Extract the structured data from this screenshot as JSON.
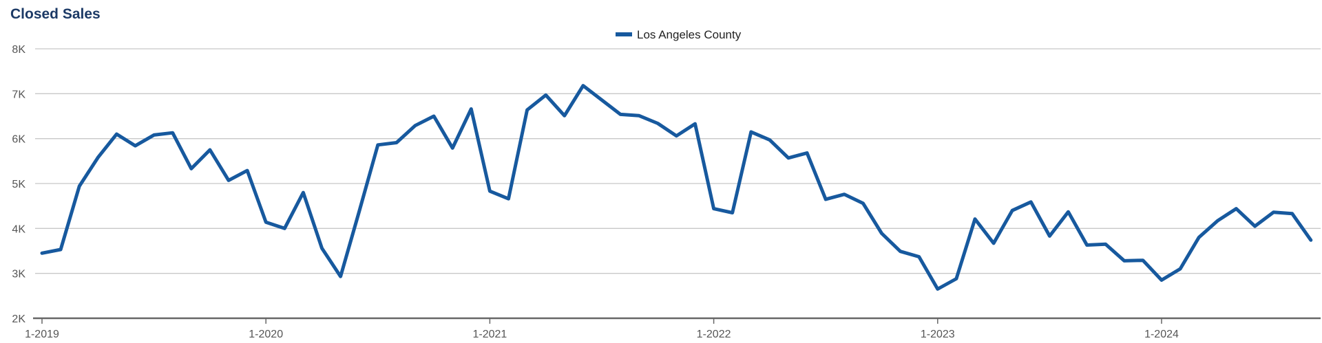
{
  "page": {
    "title": "Closed Sales"
  },
  "chart_data": {
    "type": "line",
    "title": "Closed Sales",
    "xlabel": "",
    "ylabel": "",
    "ylim": [
      2000,
      8000
    ],
    "yticks": [
      2000,
      3000,
      4000,
      5000,
      6000,
      7000,
      8000
    ],
    "ytick_labels": [
      "2K",
      "3K",
      "4K",
      "5K",
      "6K",
      "7K",
      "8K"
    ],
    "xtick_labels": [
      "1-2019",
      "1-2020",
      "1-2021",
      "1-2022",
      "1-2023",
      "1-2024"
    ],
    "x_start": "1-2019",
    "grid": true,
    "legend": "top-center",
    "colors": {
      "line": "#17599e",
      "grid": "#c8c8c8",
      "axis": "#666666",
      "tick_text": "#555555",
      "title": "#1c3a66"
    },
    "x": [
      "1-2019",
      "2-2019",
      "3-2019",
      "4-2019",
      "5-2019",
      "6-2019",
      "7-2019",
      "8-2019",
      "9-2019",
      "10-2019",
      "11-2019",
      "12-2019",
      "1-2020",
      "2-2020",
      "3-2020",
      "4-2020",
      "5-2020",
      "6-2020",
      "7-2020",
      "8-2020",
      "9-2020",
      "10-2020",
      "11-2020",
      "12-2020",
      "1-2021",
      "2-2021",
      "3-2021",
      "4-2021",
      "5-2021",
      "6-2021",
      "7-2021",
      "8-2021",
      "9-2021",
      "10-2021",
      "11-2021",
      "12-2021",
      "1-2022",
      "2-2022",
      "3-2022",
      "4-2022",
      "5-2022",
      "6-2022",
      "7-2022",
      "8-2022",
      "9-2022",
      "10-2022",
      "11-2022",
      "12-2022",
      "1-2023",
      "2-2023",
      "3-2023",
      "4-2023",
      "5-2023",
      "6-2023",
      "7-2023",
      "8-2023",
      "9-2023",
      "10-2023",
      "11-2023",
      "12-2023",
      "1-2024",
      "2-2024",
      "3-2024",
      "4-2024",
      "5-2024",
      "6-2024",
      "7-2024",
      "8-2024",
      "9-2024"
    ],
    "series": [
      {
        "name": "Los Angeles County",
        "values": [
          3450,
          3530,
          4940,
          5580,
          6100,
          5840,
          6080,
          6130,
          5330,
          5750,
          5070,
          5290,
          4140,
          4000,
          4800,
          3560,
          2930,
          4380,
          5860,
          5910,
          6290,
          6500,
          5790,
          6660,
          4830,
          4660,
          6640,
          6970,
          6510,
          7180,
          6860,
          6540,
          6510,
          6340,
          6060,
          6330,
          4440,
          4350,
          6150,
          5970,
          5570,
          5680,
          4650,
          4760,
          4560,
          3890,
          3490,
          3370,
          2650,
          2880,
          4210,
          3670,
          4400,
          4590,
          3830,
          4370,
          3630,
          3650,
          3280,
          3290,
          2850,
          3100,
          3800,
          4170,
          4440,
          4050,
          4360,
          4330,
          3740
        ]
      }
    ]
  }
}
